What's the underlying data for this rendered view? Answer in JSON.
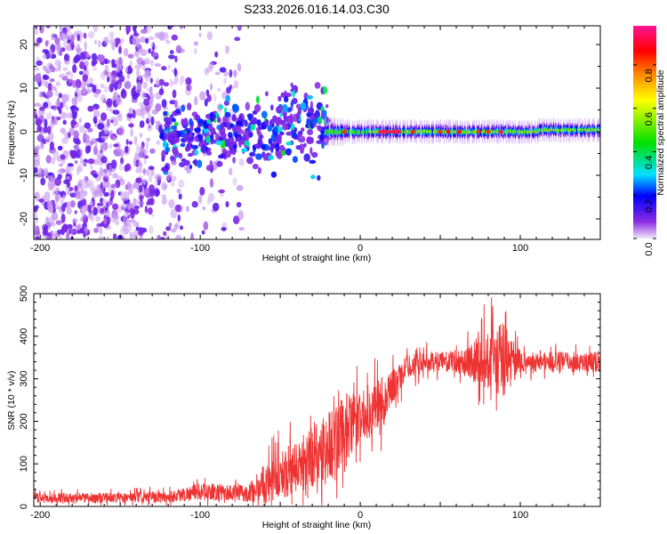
{
  "title": "S233.2026.016.14.03.C30",
  "chart_data": [
    {
      "type": "heatmap",
      "title": "S233.2026.016.14.03.C30",
      "xlabel": "Height of straight line (km)",
      "ylabel": "Frequency (Hz)",
      "xlim": [
        -204,
        150
      ],
      "ylim": [
        -24.7,
        24.3
      ],
      "xticks": [
        "-200",
        "-100",
        "0",
        "100"
      ],
      "xtick_values": [
        -200,
        -100,
        0,
        100
      ],
      "yticks": [
        "20",
        "10",
        "0",
        "-10",
        "-20"
      ],
      "ytick_values": [
        20,
        10,
        0,
        -10,
        -20
      ],
      "colorbar": {
        "label": "Normalized spectral amplitude",
        "range": [
          0,
          0.98
        ],
        "ticks": [
          "0.0",
          "0.2",
          "0.4",
          "0.6",
          "0.8"
        ],
        "tick_values": [
          0,
          0.2,
          0.4,
          0.6,
          0.8
        ],
        "colormap": [
          "#f2e6fa",
          "#8a2be2",
          "#0000ff",
          "#00e0ff",
          "#00e000",
          "#ffff00",
          "#ff8000",
          "#ff0000",
          "#ff1493"
        ]
      },
      "features": {
        "noise_region_km": [
          -204,
          -80
        ],
        "scattered_band_km": [
          -125,
          -20
        ],
        "scattered_band_freq_hz": [
          -8,
          8
        ],
        "ridge_start_km": -22,
        "ridge_freq_hz": 0,
        "peak_amplitude_km": [
          [
            -10,
            0.85
          ],
          [
            15,
            0.95
          ],
          [
            22,
            0.95
          ],
          [
            33,
            0.85
          ],
          [
            50,
            0.85
          ],
          [
            55,
            0.9
          ],
          [
            62,
            0.9
          ],
          [
            74,
            0.85
          ],
          [
            80,
            0.85
          ],
          [
            88,
            0.95
          ]
        ]
      }
    },
    {
      "type": "line",
      "xlabel": "Height of straight line (km)",
      "ylabel": "SNR (10 * v/v)",
      "xlim": [
        -204,
        150
      ],
      "ylim": [
        0,
        500
      ],
      "xticks": [
        "-200",
        "-100",
        "0",
        "100"
      ],
      "xtick_values": [
        -200,
        -100,
        0,
        100
      ],
      "yticks": [
        "0",
        "100",
        "200",
        "300",
        "400",
        "500"
      ],
      "ytick_values": [
        0,
        100,
        200,
        300,
        400,
        500
      ],
      "series": [
        {
          "name": "SNR",
          "color": "#ee3333",
          "x": [
            -204,
            -180,
            -150,
            -120,
            -100,
            -80,
            -70,
            -60,
            -50,
            -40,
            -30,
            -20,
            -10,
            0,
            10,
            20,
            30,
            40,
            60,
            80,
            90,
            100,
            120,
            150
          ],
          "y": [
            20,
            20,
            20,
            22,
            35,
            32,
            30,
            55,
            75,
            90,
            120,
            140,
            170,
            210,
            235,
            280,
            330,
            340,
            340,
            345,
            345,
            340,
            340,
            340
          ],
          "noise_amplitude": [
            15,
            15,
            15,
            18,
            25,
            25,
            25,
            60,
            70,
            80,
            100,
            110,
            120,
            70,
            90,
            50,
            35,
            30,
            30,
            90,
            120,
            30,
            30,
            30
          ]
        }
      ]
    }
  ]
}
